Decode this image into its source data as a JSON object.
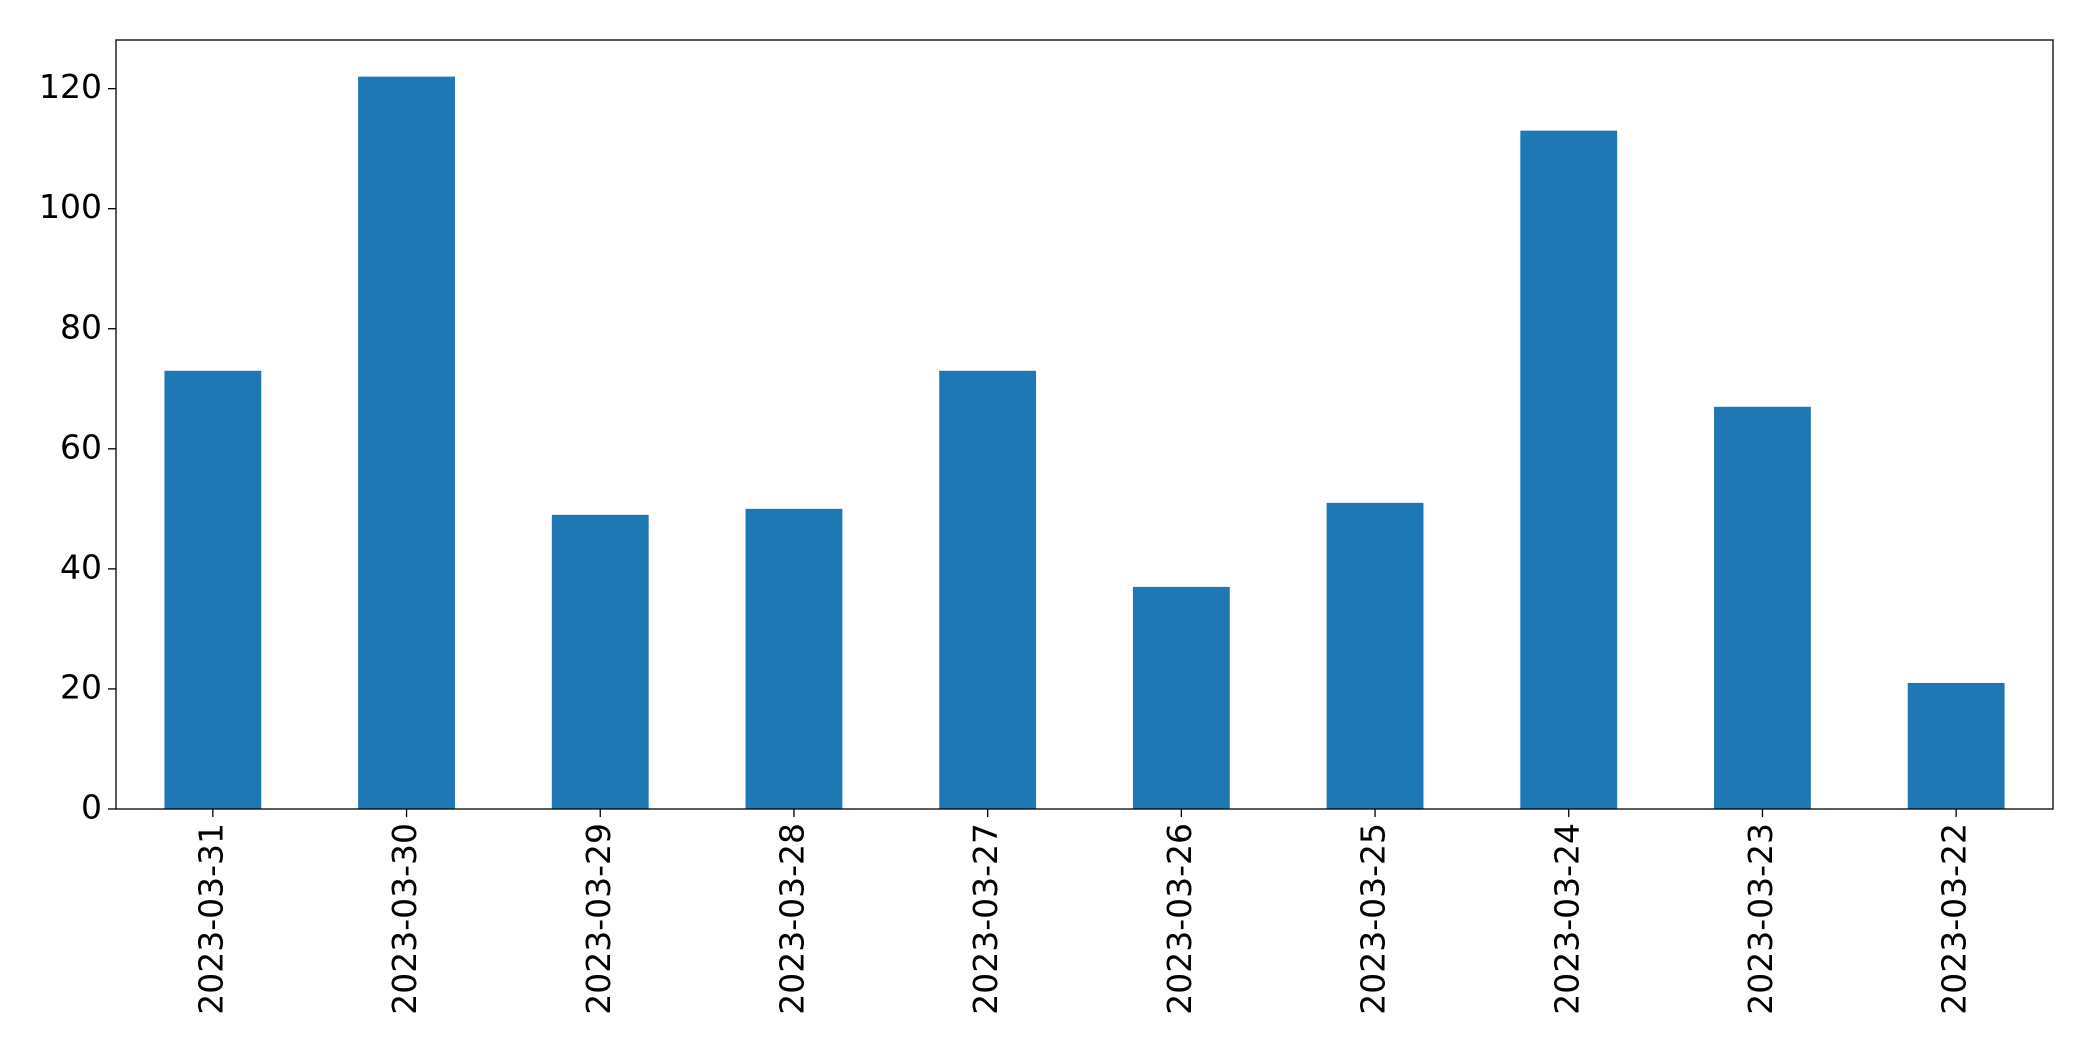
{
  "chart_data": {
    "type": "bar",
    "categories": [
      "2023-03-31",
      "2023-03-30",
      "2023-03-29",
      "2023-03-28",
      "2023-03-27",
      "2023-03-26",
      "2023-03-25",
      "2023-03-24",
      "2023-03-23",
      "2023-03-22"
    ],
    "values": [
      73,
      122,
      49,
      50,
      73,
      37,
      51,
      113,
      67,
      21
    ],
    "color": "#1f77b4",
    "ylim": [
      0,
      128.1
    ],
    "yticks": [
      0,
      20,
      40,
      60,
      80,
      100,
      120
    ],
    "grid": false
  }
}
